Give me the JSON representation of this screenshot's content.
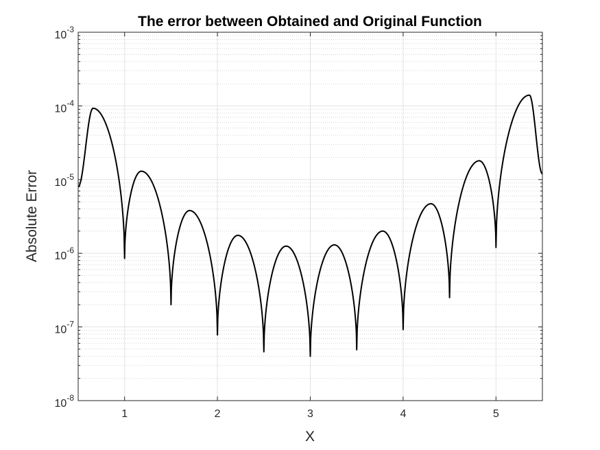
{
  "chart_data": {
    "type": "line",
    "title": "The error between Obtained and Original Function",
    "xlabel": "X",
    "ylabel": "Absolute Error",
    "xlim": [
      0.5,
      5.5
    ],
    "ylim": [
      1e-08,
      0.001
    ],
    "yscale": "log",
    "grid": true,
    "minor_grid": true,
    "xticks": [
      1,
      2,
      3,
      4,
      5
    ],
    "xtick_labels": [
      "1",
      "2",
      "3",
      "4",
      "5"
    ],
    "yticks": [
      {
        "value": 1e-08,
        "base": "10",
        "exp": "-8"
      },
      {
        "value": 1e-07,
        "base": "10",
        "exp": "-7"
      },
      {
        "value": 1e-06,
        "base": "10",
        "exp": "-6"
      },
      {
        "value": 1e-05,
        "base": "10",
        "exp": "-5"
      },
      {
        "value": 0.0001,
        "base": "10",
        "exp": "-4"
      },
      {
        "value": 0.001,
        "base": "10",
        "exp": "-3"
      }
    ],
    "series": [
      {
        "color": "#000000",
        "zeros": [
          1.0,
          1.5,
          2.0,
          2.5,
          3.0,
          3.5,
          4.0,
          4.5,
          5.0
        ],
        "zero_minimums": [
          8.5e-07,
          2e-07,
          7.8e-08,
          4.6e-08,
          4e-08,
          4.9e-08,
          9.2e-08,
          2.5e-07,
          1.2e-06
        ],
        "peaks": [
          {
            "x": 0.66,
            "y": 9.3e-05
          },
          {
            "x": 1.18,
            "y": 1.3e-05
          },
          {
            "x": 1.7,
            "y": 3.8e-06
          },
          {
            "x": 2.22,
            "y": 1.75e-06
          },
          {
            "x": 2.74,
            "y": 1.25e-06
          },
          {
            "x": 3.26,
            "y": 1.3e-06
          },
          {
            "x": 3.78,
            "y": 2e-06
          },
          {
            "x": 4.3,
            "y": 4.7e-06
          },
          {
            "x": 4.82,
            "y": 1.8e-05
          },
          {
            "x": 5.36,
            "y": 0.00014
          }
        ],
        "endpoints": [
          {
            "x": 0.5,
            "y": 8e-06
          },
          {
            "x": 5.5,
            "y": 1.2e-05
          }
        ]
      }
    ]
  }
}
